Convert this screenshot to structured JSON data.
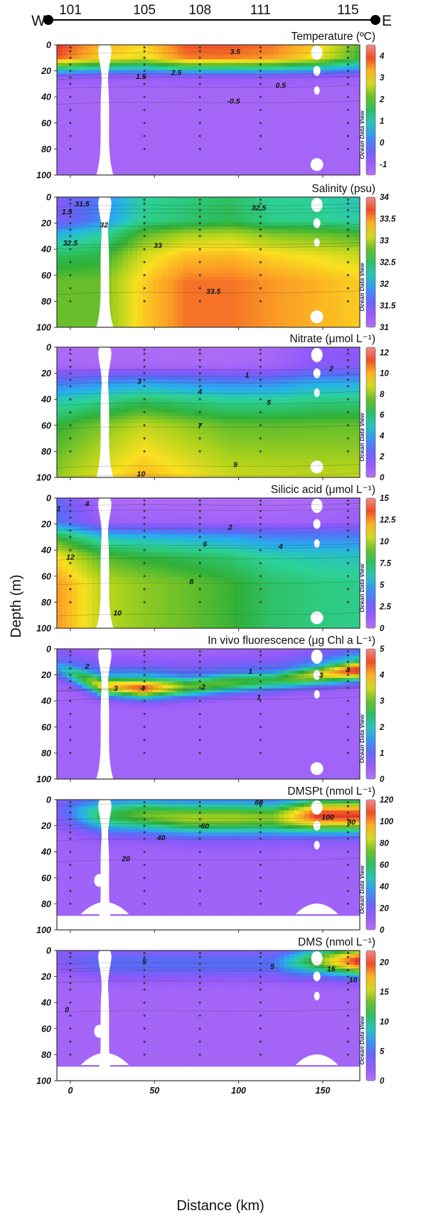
{
  "figure": {
    "ylabel": "Depth (m)",
    "xlabel": "Distance (km)",
    "west_label": "W",
    "east_label": "E",
    "station_labels": [
      "101",
      "105",
      "108",
      "111",
      "115"
    ],
    "station_km": [
      0,
      44,
      77,
      113,
      165
    ],
    "x_ticks": [
      0,
      50,
      100,
      150
    ],
    "x_range": [
      -8,
      172
    ],
    "y_ticks": [
      0,
      20,
      40,
      60,
      80,
      100
    ],
    "y_range": [
      0,
      100
    ],
    "watermark": "Ocean Data View",
    "sample_depths": [
      2,
      5,
      10,
      15,
      20,
      25,
      30,
      40,
      50,
      60,
      70,
      80
    ]
  },
  "chart_data": [
    {
      "type": "heatmap",
      "title": "Temperature (ºC)",
      "colorbar": {
        "min": -1.5,
        "max": 4.5,
        "ticks": [
          "4",
          "3",
          "2",
          "1",
          "0",
          "-1"
        ],
        "tick_values": [
          4,
          3,
          2,
          1,
          0,
          -1
        ]
      },
      "contours": [
        {
          "label": "3.5",
          "x": 98,
          "y": 5
        },
        {
          "label": "2.5",
          "x": 63,
          "y": 21
        },
        {
          "label": "1.5",
          "x": 42,
          "y": 24
        },
        {
          "label": "0.5",
          "x": 125,
          "y": 31
        },
        {
          "label": "-0.5",
          "x": 97,
          "y": 43
        }
      ],
      "surface": [
        4.1,
        3.3,
        3.0,
        3.9,
        3.9,
        3.7,
        3.1,
        2.0
      ],
      "profile": [
        [
          0,
          1.0
        ],
        [
          10,
          0.95
        ],
        [
          17,
          0.55
        ],
        [
          25,
          0.05
        ],
        [
          35,
          0.0
        ],
        [
          100,
          0.0
        ]
      ]
    },
    {
      "type": "heatmap",
      "title": "Salinity (psu)",
      "colorbar": {
        "min": 31,
        "max": 34,
        "ticks": [
          "34",
          "33.5",
          "33",
          "32.5",
          "32",
          "31.5",
          "31"
        ],
        "tick_values": [
          34,
          33.5,
          33,
          32.5,
          32,
          31.5,
          31
        ]
      },
      "contours": [
        {
          "label": "31.5",
          "x": 7,
          "y": 5
        },
        {
          "label": "1.5",
          "x": -2,
          "y": 11
        },
        {
          "label": "32",
          "x": 20,
          "y": 21
        },
        {
          "label": "32.5",
          "x": 0,
          "y": 35
        },
        {
          "label": "33",
          "x": 52,
          "y": 37
        },
        {
          "label": "32.5",
          "x": 112,
          "y": 8
        },
        {
          "label": "33.5",
          "x": 85,
          "y": 72
        }
      ],
      "surface": [
        31.4,
        31.8,
        32.3,
        32.4,
        32.5,
        32.3,
        32.3,
        32.2
      ],
      "deep": [
        32.8,
        32.8,
        33.3,
        33.6,
        33.6,
        33.5,
        33.4,
        33.3
      ],
      "profile": [
        [
          0,
          0.0
        ],
        [
          18,
          0.05
        ],
        [
          28,
          0.45
        ],
        [
          45,
          0.8
        ],
        [
          65,
          1.0
        ],
        [
          100,
          1.0
        ]
      ]
    },
    {
      "type": "heatmap",
      "title": "Nitrate (μmol L⁻¹)",
      "colorbar": {
        "min": 0,
        "max": 12.5,
        "ticks": [
          "12",
          "10",
          "8",
          "6",
          "4",
          "2",
          "0"
        ],
        "tick_values": [
          12,
          10,
          8,
          6,
          4,
          2,
          0
        ]
      },
      "contours": [
        {
          "label": "1",
          "x": 105,
          "y": 21
        },
        {
          "label": "2",
          "x": 155,
          "y": 16
        },
        {
          "label": "3",
          "x": 41,
          "y": 26
        },
        {
          "label": "4",
          "x": 77,
          "y": 34
        },
        {
          "label": "5",
          "x": 118,
          "y": 42
        },
        {
          "label": "7",
          "x": 77,
          "y": 60
        },
        {
          "label": "9",
          "x": 98,
          "y": 90
        },
        {
          "label": "10",
          "x": 42,
          "y": 97
        }
      ],
      "surface": [
        0.3,
        0.3,
        0.3,
        0.3,
        0.3,
        0.5,
        1.5,
        1.5
      ],
      "deep": [
        8.0,
        9.0,
        10.0,
        9.3,
        8.7,
        8.6,
        8.5,
        8.5
      ],
      "profile": [
        [
          0,
          0.0
        ],
        [
          14,
          0.02
        ],
        [
          26,
          0.35
        ],
        [
          40,
          0.6
        ],
        [
          60,
          0.85
        ],
        [
          100,
          1.0
        ]
      ]
    },
    {
      "type": "heatmap",
      "title": "Silicic acid (μmol L⁻¹)",
      "colorbar": {
        "min": 0,
        "max": 15,
        "ticks": [
          "15",
          "12.5",
          "10",
          "7.5",
          "5",
          "2.5",
          "0"
        ],
        "tick_values": [
          15,
          12.5,
          10,
          7.5,
          5,
          2.5,
          0
        ]
      },
      "contours": [
        {
          "label": "4",
          "x": 10,
          "y": 4
        },
        {
          "label": "1",
          "x": -7,
          "y": 8
        },
        {
          "label": "12",
          "x": 0,
          "y": 45
        },
        {
          "label": "2",
          "x": 95,
          "y": 22
        },
        {
          "label": "6",
          "x": 80,
          "y": 35
        },
        {
          "label": "4",
          "x": 125,
          "y": 37
        },
        {
          "label": "8",
          "x": 72,
          "y": 64
        },
        {
          "label": "10",
          "x": 28,
          "y": 88
        }
      ],
      "surface": [
        3.0,
        0.5,
        0.3,
        0.3,
        0.3,
        0.3,
        0.5,
        0.8
      ],
      "deep": [
        12.5,
        10.2,
        9.5,
        9.0,
        8.4,
        7.4,
        7.0,
        6.8
      ],
      "profile": [
        [
          0,
          0.0
        ],
        [
          18,
          0.08
        ],
        [
          30,
          0.55
        ],
        [
          45,
          0.85
        ],
        [
          65,
          1.0
        ],
        [
          100,
          1.0
        ]
      ]
    },
    {
      "type": "heatmap",
      "title": "In vivo fluorescence (μg Chl a L⁻¹)",
      "colorbar": {
        "min": 0,
        "max": 5,
        "ticks": [
          "5",
          "4",
          "3",
          "2",
          "1",
          "0"
        ],
        "tick_values": [
          5,
          4,
          3,
          2,
          1,
          0
        ]
      },
      "contours": [
        {
          "label": "2",
          "x": 10,
          "y": 13
        },
        {
          "label": "3",
          "x": 27,
          "y": 30
        },
        {
          "label": "4",
          "x": 43,
          "y": 30
        },
        {
          "label": "2",
          "x": 79,
          "y": 29
        },
        {
          "label": "1",
          "x": 107,
          "y": 17
        },
        {
          "label": "1",
          "x": 112,
          "y": 37
        },
        {
          "label": "3",
          "x": 149,
          "y": 20
        },
        {
          "label": "4",
          "x": 165,
          "y": 16
        }
      ],
      "background": 0.3,
      "peak_depth": [
        14,
        28,
        30,
        29,
        26,
        24,
        20,
        16
      ],
      "peak_value": [
        1.5,
        3.6,
        4.5,
        3.0,
        2.9,
        2.6,
        3.5,
        4.8
      ],
      "peak_width": 8
    },
    {
      "type": "heatmap",
      "title": "DMSPt (nmol L⁻¹)",
      "colorbar": {
        "min": 0,
        "max": 120,
        "ticks": [
          "120",
          "100",
          "80",
          "60",
          "40",
          "20",
          "0"
        ],
        "tick_values": [
          120,
          100,
          80,
          60,
          40,
          20,
          0
        ]
      },
      "contours": [
        {
          "label": "60",
          "x": 112,
          "y": 2
        },
        {
          "label": "100",
          "x": 153,
          "y": 13
        },
        {
          "label": "80",
          "x": 167,
          "y": 17
        },
        {
          "label": "60",
          "x": 80,
          "y": 20
        },
        {
          "label": "40",
          "x": 54,
          "y": 29
        },
        {
          "label": "20",
          "x": 33,
          "y": 45
        }
      ],
      "background": 8,
      "peak_depth": [
        8,
        12,
        12,
        14,
        14,
        14,
        12,
        12
      ],
      "peak_value": [
        18,
        60,
        72,
        78,
        78,
        75,
        110,
        110
      ],
      "peak_width": 13,
      "floor": 88
    },
    {
      "type": "heatmap",
      "title": "DMS (nmol L⁻¹)",
      "colorbar": {
        "min": 0,
        "max": 22,
        "ticks": [
          "20",
          "15",
          "10",
          "5",
          "0"
        ],
        "tick_values": [
          20,
          15,
          10,
          5,
          0
        ]
      },
      "contours": [
        {
          "label": "5",
          "x": 44,
          "y": 8
        },
        {
          "label": "5",
          "x": 120,
          "y": 12
        },
        {
          "label": "15",
          "x": 155,
          "y": 14
        },
        {
          "label": "10",
          "x": 168,
          "y": 22
        },
        {
          "label": "0",
          "x": -2,
          "y": 45
        }
      ],
      "background": 1.2,
      "peak_depth": [
        6,
        10,
        10,
        10,
        10,
        10,
        8,
        8
      ],
      "peak_value": [
        3.0,
        5.0,
        5.2,
        5.2,
        5.2,
        5.4,
        13,
        21
      ],
      "peak_width": 11,
      "floor": 88
    }
  ]
}
